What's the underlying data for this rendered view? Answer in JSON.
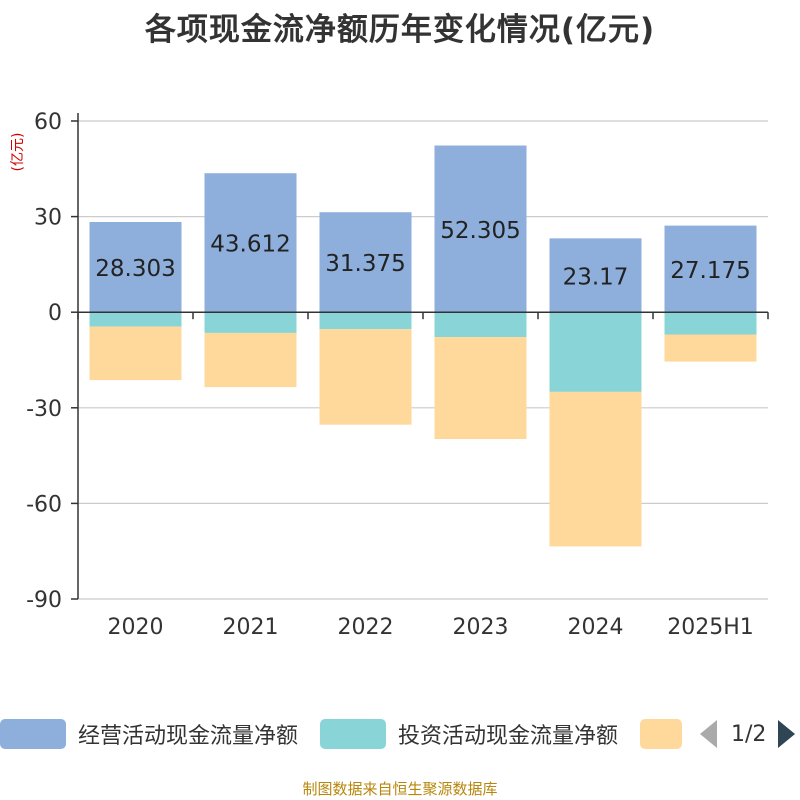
{
  "chart_data": {
    "type": "bar",
    "stacked": true,
    "title": "各项现金流净额历年变化情况(亿元)",
    "unit_label": "(亿元)",
    "categories": [
      "2020",
      "2021",
      "2022",
      "2023",
      "2024",
      "2025H1"
    ],
    "ylim": [
      -90,
      60
    ],
    "yticks": [
      60,
      30,
      0,
      -30,
      -60,
      -90
    ],
    "grid": true,
    "series": [
      {
        "name": "经营活动现金流量净额",
        "color": "#8eaedc",
        "values": [
          28.303,
          43.612,
          31.375,
          52.305,
          23.17,
          27.175
        ],
        "labels": [
          "28.303",
          "43.612",
          "31.375",
          "52.305",
          "23.17",
          "27.175"
        ]
      },
      {
        "name": "投资活动现金流量净额",
        "color": "#88d4d6",
        "values": [
          -4.5,
          -6.5,
          -5.3,
          -7.8,
          -25.0,
          -7.0
        ]
      },
      {
        "name": "",
        "color": "#ffd99b",
        "values": [
          -16.8,
          -17.0,
          -30.0,
          -32.0,
          -48.5,
          -8.5
        ]
      }
    ],
    "legend": {
      "position": "bottom",
      "page": "1/2"
    }
  },
  "footer": "制图数据来自恒生聚源数据库"
}
